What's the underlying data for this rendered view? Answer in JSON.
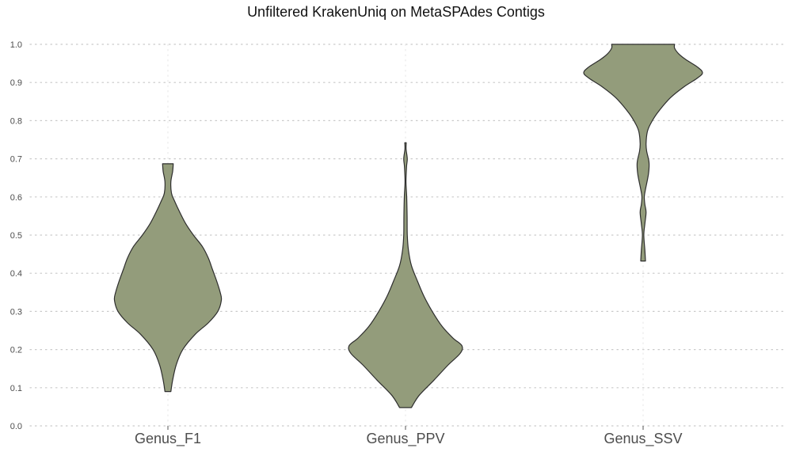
{
  "chart_data": {
    "type": "violin",
    "title": "Unfiltered KrakenUniq on MetaSPAdes Contigs",
    "xlabel": "",
    "ylabel": "",
    "ylim": [
      0,
      1
    ],
    "yticks": [
      "0.0",
      "0.1",
      "0.2",
      "0.3",
      "0.4",
      "0.5",
      "0.6",
      "0.7",
      "0.8",
      "0.9",
      "1.0"
    ],
    "grid": "horizontal-dotted",
    "fill_color": "#939c7b",
    "stroke_color": "#2e2e2e",
    "categories": [
      "Genus_F1",
      "Genus_PPV",
      "Genus_SSV"
    ],
    "series": [
      {
        "category": "Genus_F1",
        "min": 0.09,
        "max": 0.687,
        "density": [
          [
            0.09,
            0.05
          ],
          [
            0.12,
            0.08
          ],
          [
            0.16,
            0.14
          ],
          [
            0.2,
            0.25
          ],
          [
            0.24,
            0.46
          ],
          [
            0.27,
            0.68
          ],
          [
            0.3,
            0.84
          ],
          [
            0.33,
            0.9
          ],
          [
            0.35,
            0.88
          ],
          [
            0.38,
            0.82
          ],
          [
            0.41,
            0.75
          ],
          [
            0.44,
            0.68
          ],
          [
            0.47,
            0.58
          ],
          [
            0.5,
            0.43
          ],
          [
            0.53,
            0.3
          ],
          [
            0.56,
            0.2
          ],
          [
            0.59,
            0.11
          ],
          [
            0.61,
            0.06
          ],
          [
            0.64,
            0.05
          ],
          [
            0.667,
            0.08
          ],
          [
            0.687,
            0.09
          ]
        ]
      },
      {
        "category": "Genus_PPV",
        "min": 0.048,
        "max": 0.742,
        "density": [
          [
            0.048,
            0.1
          ],
          [
            0.08,
            0.23
          ],
          [
            0.12,
            0.48
          ],
          [
            0.16,
            0.72
          ],
          [
            0.19,
            0.92
          ],
          [
            0.21,
            0.95
          ],
          [
            0.23,
            0.8
          ],
          [
            0.26,
            0.62
          ],
          [
            0.3,
            0.45
          ],
          [
            0.34,
            0.31
          ],
          [
            0.38,
            0.2
          ],
          [
            0.42,
            0.1
          ],
          [
            0.46,
            0.05
          ],
          [
            0.5,
            0.03
          ],
          [
            0.55,
            0.027
          ],
          [
            0.6,
            0.02
          ],
          [
            0.64,
            0.008
          ],
          [
            0.68,
            0.018
          ],
          [
            0.7,
            0.03
          ],
          [
            0.725,
            0.01
          ],
          [
            0.742,
            0.012
          ]
        ]
      },
      {
        "category": "Genus_SSV",
        "min": 0.432,
        "max": 1.0,
        "density": [
          [
            0.432,
            0.04
          ],
          [
            0.46,
            0.03
          ],
          [
            0.5,
            0.012
          ],
          [
            0.53,
            0.03
          ],
          [
            0.56,
            0.05
          ],
          [
            0.58,
            0.03
          ],
          [
            0.6,
            0.02
          ],
          [
            0.62,
            0.04
          ],
          [
            0.66,
            0.09
          ],
          [
            0.69,
            0.1
          ],
          [
            0.72,
            0.06
          ],
          [
            0.74,
            0.05
          ],
          [
            0.77,
            0.07
          ],
          [
            0.79,
            0.12
          ],
          [
            0.82,
            0.24
          ],
          [
            0.86,
            0.46
          ],
          [
            0.89,
            0.7
          ],
          [
            0.91,
            0.9
          ],
          [
            0.925,
            1.0
          ],
          [
            0.94,
            0.92
          ],
          [
            0.96,
            0.72
          ],
          [
            0.975,
            0.6
          ],
          [
            0.99,
            0.53
          ],
          [
            1.0,
            0.53
          ]
        ]
      }
    ]
  }
}
